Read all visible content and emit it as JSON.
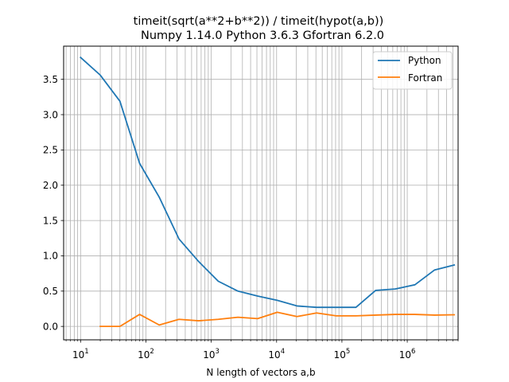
{
  "chart_data": {
    "type": "line",
    "title": "timeit(sqrt(a**2+b**2)) / timeit(hypot(a,b))",
    "subtitle": "Numpy 1.14.0 Python 3.6.3 Gfortran 6.2.0",
    "xlabel": "N length of vectors a,b",
    "ylabel": "",
    "xscale": "log",
    "xlim": [
      5.5,
      6000000
    ],
    "ylim": [
      -0.19,
      3.97
    ],
    "grid": true,
    "legend_position": "top-right",
    "x_tick_labels": [
      {
        "value": 10,
        "base": "10",
        "exp": "1"
      },
      {
        "value": 100,
        "base": "10",
        "exp": "2"
      },
      {
        "value": 1000,
        "base": "10",
        "exp": "3"
      },
      {
        "value": 10000,
        "base": "10",
        "exp": "4"
      },
      {
        "value": 100000,
        "base": "10",
        "exp": "5"
      },
      {
        "value": 1000000,
        "base": "10",
        "exp": "6"
      }
    ],
    "y_ticks": [
      0.0,
      0.5,
      1.0,
      1.5,
      2.0,
      2.5,
      3.0,
      3.5
    ],
    "y_tick_labels": [
      "0.0",
      "0.5",
      "1.0",
      "1.5",
      "2.0",
      "2.5",
      "3.0",
      "3.5"
    ],
    "series": [
      {
        "name": "Python",
        "color": "#1f77b4",
        "x": [
          10,
          20,
          40,
          80,
          160,
          320,
          640,
          1280,
          2560,
          5120,
          10240,
          20480,
          40960,
          81920,
          163840,
          327680,
          655360,
          1310720,
          2621440,
          5242880
        ],
        "y": [
          3.81,
          3.56,
          3.19,
          2.31,
          1.83,
          1.24,
          0.92,
          0.64,
          0.5,
          0.43,
          0.37,
          0.29,
          0.27,
          0.27,
          0.27,
          0.51,
          0.53,
          0.59,
          0.8,
          0.87
        ]
      },
      {
        "name": "Fortran",
        "color": "#ff7f0e",
        "x": [
          20,
          40,
          80,
          160,
          320,
          640,
          1280,
          2560,
          5120,
          10240,
          20480,
          40960,
          81920,
          163840,
          327680,
          655360,
          1310720,
          2621440,
          5242880
        ],
        "y": [
          0.0,
          0.0,
          0.17,
          0.02,
          0.1,
          0.08,
          0.1,
          0.13,
          0.11,
          0.2,
          0.14,
          0.19,
          0.15,
          0.15,
          0.16,
          0.17,
          0.17,
          0.16,
          0.165
        ]
      }
    ]
  }
}
